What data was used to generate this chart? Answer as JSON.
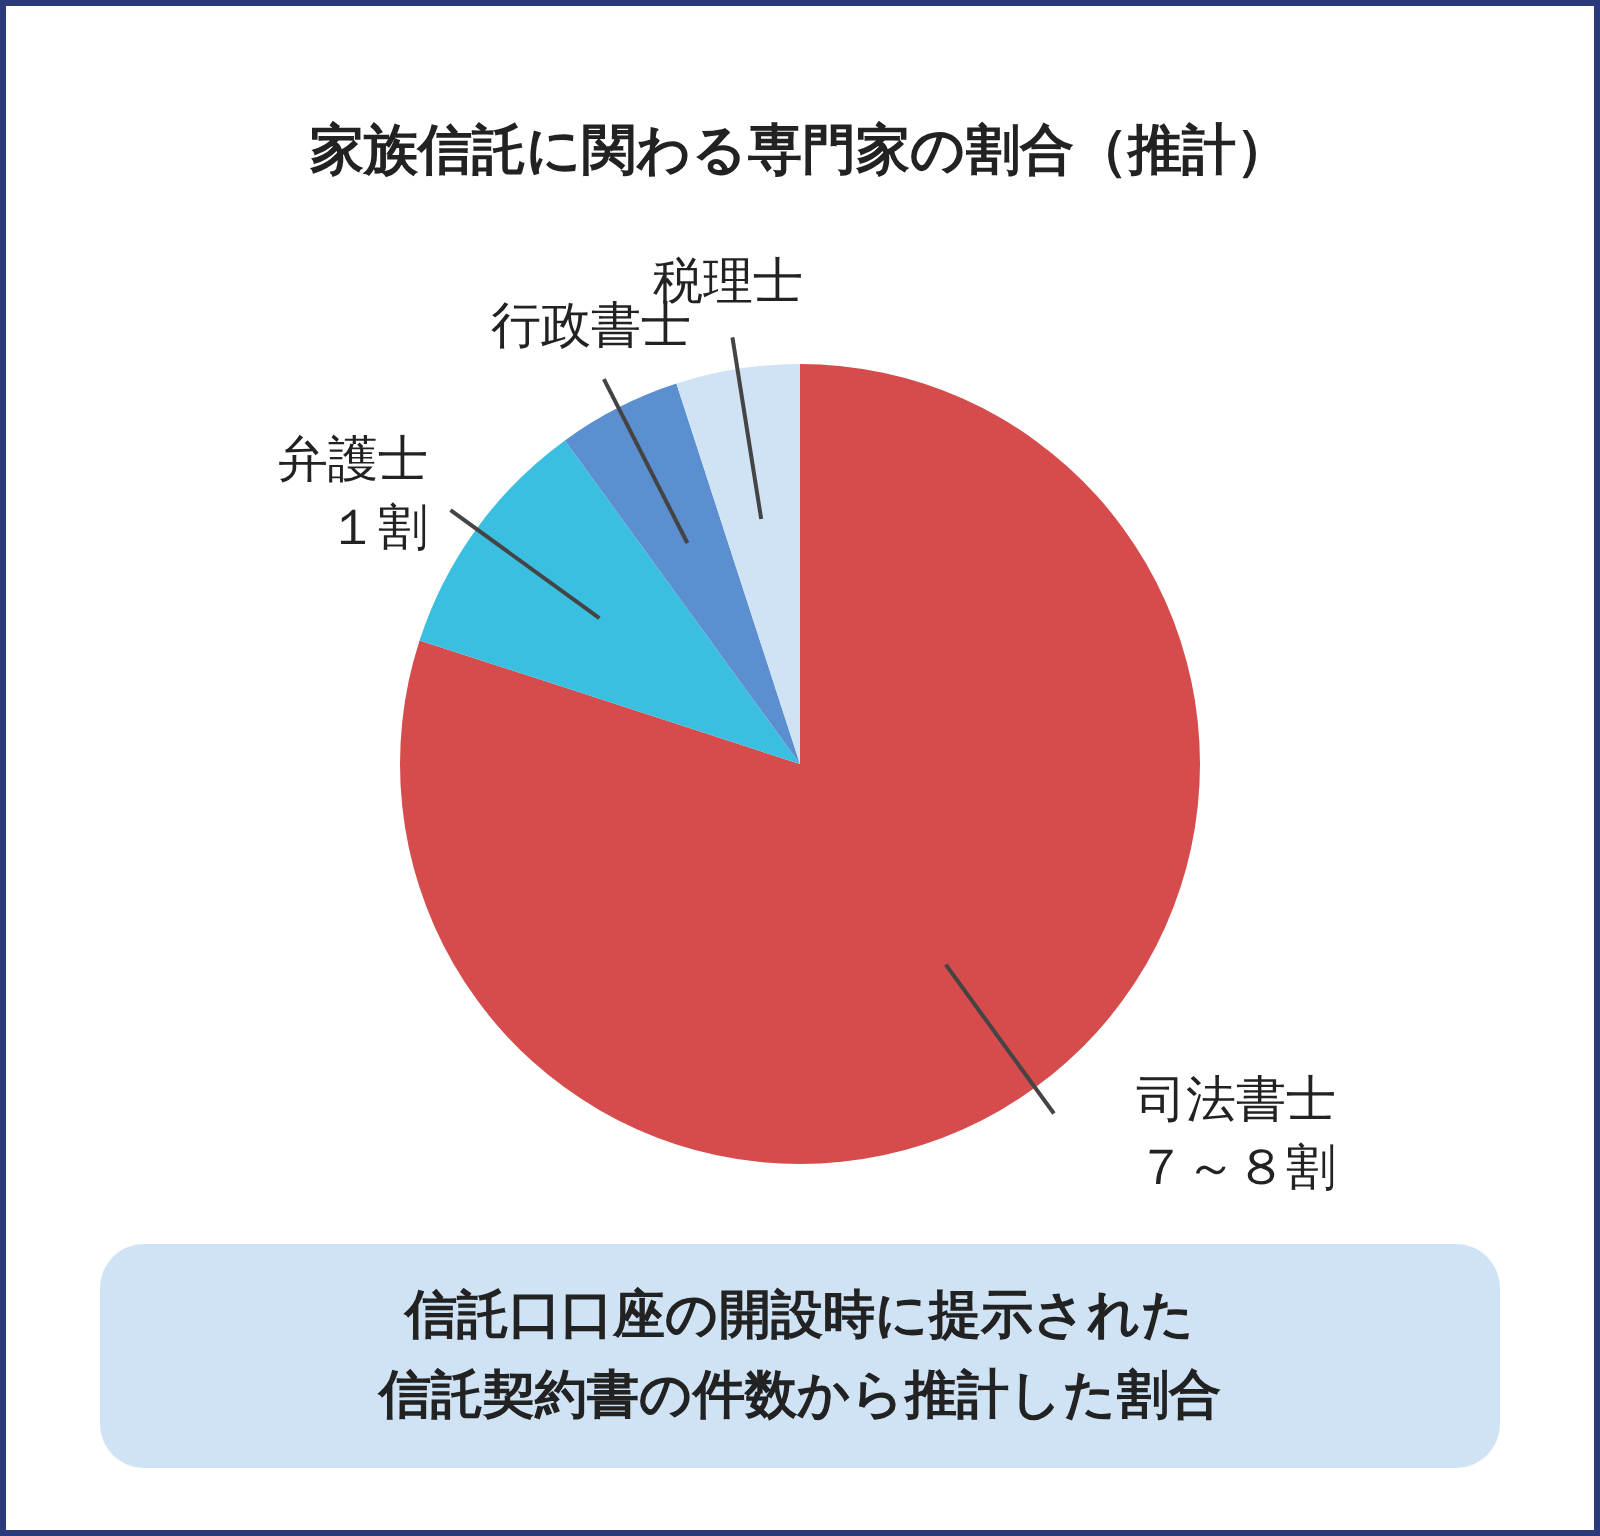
{
  "chart_data": {
    "type": "pie",
    "title": "家族信託に関わる専門家の割合（推計）",
    "categories": [
      "司法書士",
      "弁護士",
      "行政書士",
      "税理士"
    ],
    "values": [
      80,
      10,
      5,
      5
    ],
    "colors": [
      "#d64b4b",
      "#3bbfe0",
      "#5b8fcf",
      "#cfe3f5"
    ],
    "annotations": [
      {
        "text": "７～８割",
        "x": "司法書士"
      },
      {
        "text": "１割",
        "x": "弁護士"
      },
      "信託口口座の開設時に提示された",
      "信託契約書の件数から推計した割合"
    ]
  }
}
